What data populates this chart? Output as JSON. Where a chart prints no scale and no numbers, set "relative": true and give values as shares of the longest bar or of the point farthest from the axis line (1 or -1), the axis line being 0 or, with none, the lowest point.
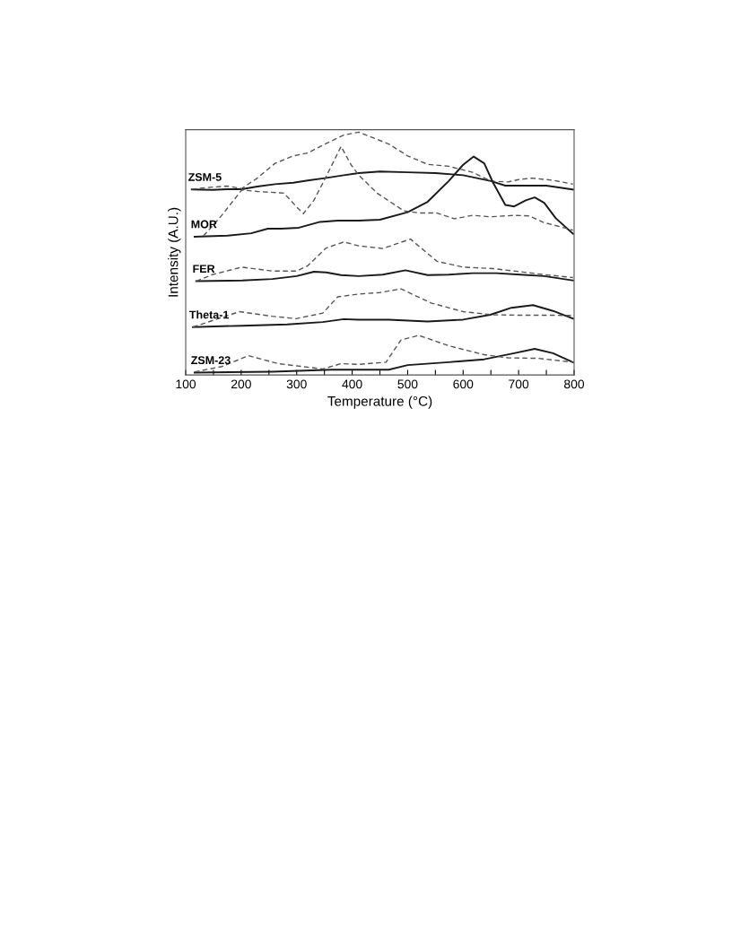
{
  "chart_data": {
    "type": "line",
    "relative": true,
    "xlabel": "Temperature (°C)",
    "ylabel": "Intensity (A.U.)",
    "xlim": [
      100,
      800
    ],
    "xticks": [
      100,
      {
        "value": 150,
        "label": null
      },
      200,
      {
        "value": 250,
        "label": null
      },
      300,
      {
        "value": 350,
        "label": null
      },
      400,
      {
        "value": 450,
        "label": null
      },
      500,
      {
        "value": 550,
        "label": null
      },
      600,
      {
        "value": 650,
        "label": null
      },
      700,
      {
        "value": 750,
        "label": null
      },
      800
    ],
    "grid": false,
    "legend": false,
    "marker": "none",
    "series": [
      {
        "name": "ZSM-5",
        "color": "#1a1a1a",
        "line_style": "solid",
        "x": [
          111,
          148,
          175,
          201,
          229,
          261,
          294,
          320,
          351,
          385,
          412,
          450,
          500,
          550,
          600,
          650,
          676,
          700,
          750,
          798
        ],
        "values": [
          0.763,
          0.761,
          0.764,
          0.764,
          0.775,
          0.785,
          0.791,
          0.8,
          0.81,
          0.822,
          0.831,
          0.837,
          0.834,
          0.831,
          0.822,
          0.798,
          0.779,
          0.779,
          0.779,
          0.763
        ]
      },
      {
        "color": "#555555",
        "line_style": "dashed",
        "x": [
          111,
          148,
          175,
          201,
          229,
          261,
          294,
          320,
          351,
          385,
          412,
          466,
          500,
          536,
          574,
          617,
          650,
          681,
          700,
          724,
          762,
          798
        ],
        "values": [
          0.764,
          0.773,
          0.777,
          0.767,
          0.81,
          0.871,
          0.902,
          0.914,
          0.951,
          0.988,
          1.0,
          0.951,
          0.902,
          0.867,
          0.859,
          0.834,
          0.798,
          0.794,
          0.804,
          0.81,
          0.801,
          0.785
        ]
      },
      {
        "name": "MOR",
        "color": "#1a1a1a",
        "line_style": "solid",
        "x": [
          116,
          175,
          218,
          248,
          272,
          304,
          342,
          374,
          412,
          450,
          500,
          536,
          574,
          600,
          619,
          638,
          654,
          676,
          692,
          713,
          729,
          746,
          767,
          798
        ],
        "values": [
          0.568,
          0.572,
          0.582,
          0.601,
          0.601,
          0.605,
          0.629,
          0.634,
          0.634,
          0.638,
          0.669,
          0.712,
          0.798,
          0.865,
          0.899,
          0.871,
          0.791,
          0.699,
          0.693,
          0.718,
          0.73,
          0.708,
          0.644,
          0.58
        ]
      },
      {
        "color": "#555555",
        "line_style": "dashed",
        "x": [
          132,
          165,
          201,
          229,
          277,
          299,
          312,
          331,
          353,
          380,
          398,
          412,
          445,
          493,
          520,
          552,
          584,
          617,
          649,
          692,
          719,
          746,
          798
        ],
        "values": [
          0.571,
          0.656,
          0.761,
          0.755,
          0.748,
          0.693,
          0.663,
          0.718,
          0.816,
          0.941,
          0.865,
          0.822,
          0.748,
          0.675,
          0.666,
          0.666,
          0.642,
          0.656,
          0.65,
          0.656,
          0.654,
          0.626,
          0.595
        ]
      },
      {
        "name": "FER",
        "color": "#1a1a1a",
        "line_style": "solid",
        "x": [
          119,
          202,
          256,
          300,
          331,
          353,
          380,
          412,
          455,
          496,
          536,
          574,
          617,
          660,
          703,
          746,
          798
        ],
        "values": [
          0.384,
          0.387,
          0.393,
          0.405,
          0.423,
          0.42,
          0.409,
          0.405,
          0.411,
          0.429,
          0.409,
          0.411,
          0.417,
          0.417,
          0.411,
          0.405,
          0.387
        ]
      },
      {
        "color": "#555555",
        "line_style": "dashed",
        "x": [
          119,
          148,
          201,
          256,
          300,
          320,
          353,
          385,
          412,
          455,
          505,
          553,
          600,
          654,
          703,
          746,
          798
        ],
        "values": [
          0.384,
          0.411,
          0.442,
          0.426,
          0.426,
          0.448,
          0.521,
          0.546,
          0.53,
          0.519,
          0.558,
          0.466,
          0.442,
          0.436,
          0.423,
          0.411,
          0.399
        ]
      },
      {
        "name": "Theta-1",
        "color": "#1a1a1a",
        "line_style": "solid",
        "x": [
          113,
          202,
          283,
          347,
          385,
          412,
          466,
          536,
          600,
          649,
          687,
          726,
          762,
          798
        ],
        "values": [
          0.194,
          0.2,
          0.205,
          0.215,
          0.227,
          0.225,
          0.225,
          0.217,
          0.225,
          0.245,
          0.274,
          0.285,
          0.261,
          0.229
        ]
      },
      {
        "color": "#555555",
        "line_style": "dashed",
        "x": [
          113,
          148,
          197,
          256,
          299,
          347,
          374,
          412,
          450,
          488,
          542,
          600,
          654,
          708,
          762,
          798
        ],
        "values": [
          0.194,
          0.221,
          0.258,
          0.239,
          0.229,
          0.252,
          0.319,
          0.331,
          0.337,
          0.352,
          0.294,
          0.258,
          0.245,
          0.243,
          0.243,
          0.242
        ]
      },
      {
        "name": "ZSM-23",
        "color": "#1a1a1a",
        "line_style": "solid",
        "x": [
          116,
          256,
          363,
          412,
          466,
          500,
          574,
          638,
          692,
          729,
          762,
          798
        ],
        "values": [
          0.006,
          0.01,
          0.018,
          0.018,
          0.018,
          0.037,
          0.049,
          0.061,
          0.086,
          0.104,
          0.086,
          0.049
        ]
      },
      {
        "color": "#555555",
        "line_style": "dashed",
        "x": [
          116,
          165,
          213,
          267,
          347,
          380,
          412,
          461,
          488,
          520,
          574,
          638,
          681,
          735,
          798
        ],
        "values": [
          0.009,
          0.031,
          0.076,
          0.043,
          0.021,
          0.043,
          0.04,
          0.049,
          0.141,
          0.16,
          0.117,
          0.08,
          0.067,
          0.065,
          0.049
        ]
      }
    ]
  }
}
